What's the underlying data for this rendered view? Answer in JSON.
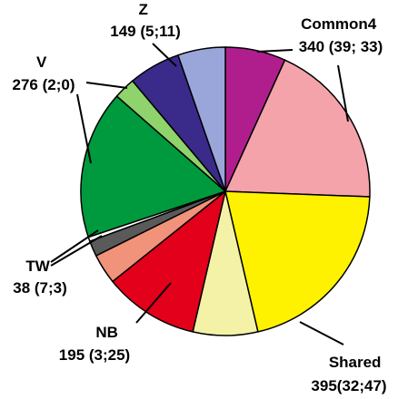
{
  "chart_data": {
    "type": "pie",
    "title": "",
    "slices": [
      {
        "color": "#B01E8E",
        "value": 7.0
      },
      {
        "color": "#F4A3AB",
        "value": 19.5
      },
      {
        "color": "#FFF200",
        "value": 21.5
      },
      {
        "color": "#F4F2A6",
        "value": 7.5
      },
      {
        "color": "#E2001A",
        "value": 11.0
      },
      {
        "color": "#F0937A",
        "value": 3.5
      },
      {
        "color": "#5A5A5A",
        "value": 1.8
      },
      {
        "color": "#FFFFFF",
        "value": 0.5
      },
      {
        "color": "#009A3E",
        "value": 17.2
      },
      {
        "color": "#8ED36B",
        "value": 2.5
      },
      {
        "color": "#3A2A8A",
        "value": 6.0
      },
      {
        "color": "#9AA6DA",
        "value": 5.5
      }
    ],
    "labels": [
      {
        "group": "common4",
        "lines": [
          "Common4",
          "340 (39; 33)"
        ]
      },
      {
        "group": "shared",
        "lines": [
          "Shared",
          "395(32;47)"
        ]
      },
      {
        "group": "nb",
        "lines": [
          "NB",
          "195 (3;25)"
        ]
      },
      {
        "group": "tw",
        "lines": [
          "TW",
          "38 (7;3)"
        ]
      },
      {
        "group": "v",
        "lines": [
          "V",
          "276 (2;0)"
        ]
      },
      {
        "group": "z",
        "lines": [
          "Z",
          "149 (5;11)"
        ]
      }
    ],
    "legend": "none"
  }
}
